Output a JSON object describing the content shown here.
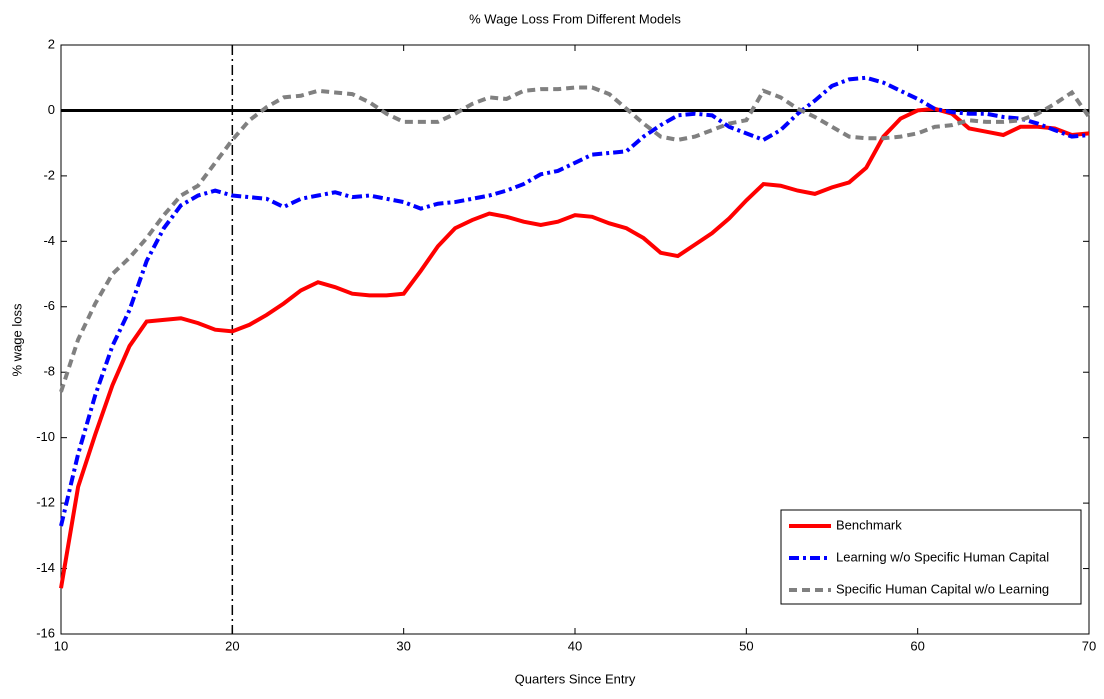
{
  "chart_data": {
    "type": "line",
    "title": "% Wage Loss From Different Models",
    "xlabel": "Quarters Since Entry",
    "ylabel": "% wage loss",
    "x": [
      10,
      11,
      12,
      13,
      14,
      15,
      16,
      17,
      18,
      19,
      20,
      21,
      22,
      23,
      24,
      25,
      26,
      27,
      28,
      29,
      30,
      31,
      32,
      33,
      34,
      35,
      36,
      37,
      38,
      39,
      40,
      41,
      42,
      43,
      44,
      45,
      46,
      47,
      48,
      49,
      50,
      51,
      52,
      53,
      54,
      55,
      56,
      57,
      58,
      59,
      60,
      61,
      62,
      63,
      64,
      65,
      66,
      67,
      68,
      69,
      70
    ],
    "series": [
      {
        "name": "Benchmark",
        "color": "#ff0000",
        "dash": "solid",
        "values": [
          -14.6,
          -11.5,
          -9.9,
          -8.4,
          -7.2,
          -6.45,
          -6.4,
          -6.35,
          -6.5,
          -6.7,
          -6.75,
          -6.55,
          -6.25,
          -5.9,
          -5.5,
          -5.25,
          -5.4,
          -5.6,
          -5.65,
          -5.65,
          -5.6,
          -4.9,
          -4.15,
          -3.6,
          -3.35,
          -3.15,
          -3.25,
          -3.4,
          -3.5,
          -3.4,
          -3.2,
          -3.25,
          -3.45,
          -3.6,
          -3.9,
          -4.35,
          -4.45,
          -4.1,
          -3.75,
          -3.3,
          -2.75,
          -2.25,
          -2.3,
          -2.45,
          -2.55,
          -2.35,
          -2.2,
          -1.75,
          -0.8,
          -0.25,
          0,
          0.05,
          -0.1,
          -0.55,
          -0.65,
          -0.75,
          -0.5,
          -0.5,
          -0.55,
          -0.75,
          -0.7
        ]
      },
      {
        "name": "Learning w/o Specific Human Capital",
        "color": "#0000ff",
        "dash": "dashdot",
        "values": [
          -12.7,
          -10.5,
          -8.7,
          -7.2,
          -6.1,
          -4.6,
          -3.6,
          -2.9,
          -2.6,
          -2.45,
          -2.6,
          -2.65,
          -2.7,
          -2.95,
          -2.7,
          -2.6,
          -2.5,
          -2.65,
          -2.6,
          -2.7,
          -2.8,
          -3.0,
          -2.85,
          -2.8,
          -2.7,
          -2.6,
          -2.45,
          -2.25,
          -1.95,
          -1.85,
          -1.6,
          -1.35,
          -1.3,
          -1.25,
          -0.8,
          -0.45,
          -0.15,
          -0.1,
          -0.15,
          -0.5,
          -0.7,
          -0.9,
          -0.6,
          -0.1,
          0.3,
          0.75,
          0.95,
          1.0,
          0.85,
          0.6,
          0.35,
          0.05,
          -0.05,
          -0.1,
          -0.1,
          -0.2,
          -0.25,
          -0.4,
          -0.6,
          -0.8,
          -0.75
        ]
      },
      {
        "name": "Specific Human Capital w/o Learning",
        "color": "#808080",
        "dash": "dashed",
        "values": [
          -8.6,
          -7.0,
          -5.9,
          -5.0,
          -4.5,
          -3.9,
          -3.2,
          -2.6,
          -2.3,
          -1.6,
          -0.9,
          -0.3,
          0.1,
          0.4,
          0.45,
          0.6,
          0.55,
          0.5,
          0.25,
          -0.1,
          -0.35,
          -0.35,
          -0.35,
          -0.1,
          0.2,
          0.4,
          0.35,
          0.6,
          0.65,
          0.65,
          0.7,
          0.7,
          0.5,
          0.05,
          -0.4,
          -0.8,
          -0.9,
          -0.8,
          -0.6,
          -0.4,
          -0.3,
          0.6,
          0.4,
          0.05,
          -0.2,
          -0.5,
          -0.8,
          -0.85,
          -0.85,
          -0.8,
          -0.7,
          -0.5,
          -0.45,
          -0.3,
          -0.35,
          -0.35,
          -0.3,
          -0.1,
          0.2,
          0.55,
          -0.2
        ]
      }
    ],
    "xlim": [
      10,
      70
    ],
    "xticks": [
      10,
      20,
      30,
      40,
      50,
      60,
      70
    ],
    "ylim": [
      -16,
      2
    ],
    "yticks": [
      -16,
      -14,
      -12,
      -10,
      -8,
      -6,
      -4,
      -2,
      0,
      2
    ],
    "hlines": [
      0
    ],
    "vlines": [
      20
    ],
    "legend": "lower right",
    "grid": false
  }
}
